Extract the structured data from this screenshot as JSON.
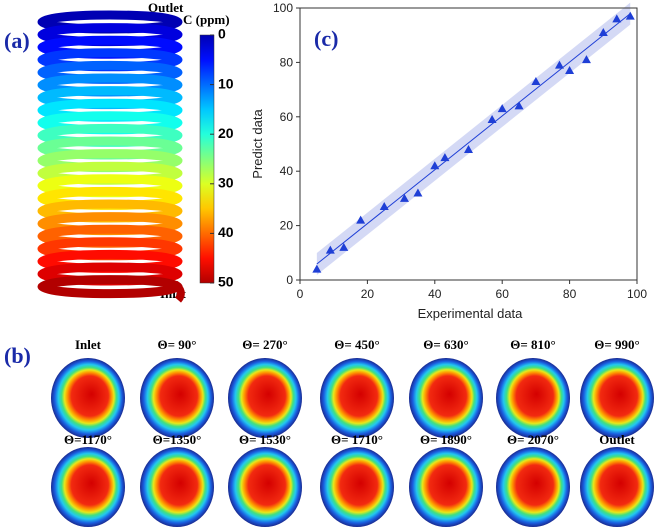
{
  "panel_labels": [
    "(a)",
    "(b)",
    "(c)"
  ],
  "panel_a": {
    "outlet": "Outlet",
    "inlet": "Inlet",
    "colorbar": {
      "title": "C (ppm)",
      "lim": [
        0,
        50
      ],
      "ticks": [
        0,
        10,
        20,
        30,
        40,
        50
      ]
    }
  },
  "panel_b": {
    "titles": [
      "Inlet",
      "Θ= 90°",
      "Θ= 270°",
      "Θ= 450°",
      "Θ= 630°",
      "Θ= 810°",
      "Θ= 990°",
      "Θ=1170°",
      "Θ=1350°",
      "Θ= 1530°",
      "Θ= 1710°",
      "Θ= 1890°",
      "Θ= 2070°",
      "Outlet"
    ]
  },
  "chart_data": {
    "type": "scatter",
    "xlabel": "Experimental data",
    "ylabel": "Predict data",
    "x": [
      5,
      9,
      13,
      18,
      25,
      31,
      35,
      40,
      43,
      50,
      57,
      60,
      65,
      70,
      77,
      80,
      85,
      90,
      94,
      98
    ],
    "values": [
      4,
      11,
      12,
      22,
      27,
      30,
      32,
      42,
      45,
      48,
      59,
      63,
      64,
      73,
      79,
      77,
      81,
      91,
      96,
      97
    ],
    "color": "#1f3fd6",
    "xlim": [
      0,
      100
    ],
    "ylim": [
      0,
      100
    ],
    "xticks": [
      0,
      20,
      40,
      60,
      80,
      100
    ],
    "yticks": [
      0,
      20,
      40,
      60,
      80,
      100
    ]
  }
}
